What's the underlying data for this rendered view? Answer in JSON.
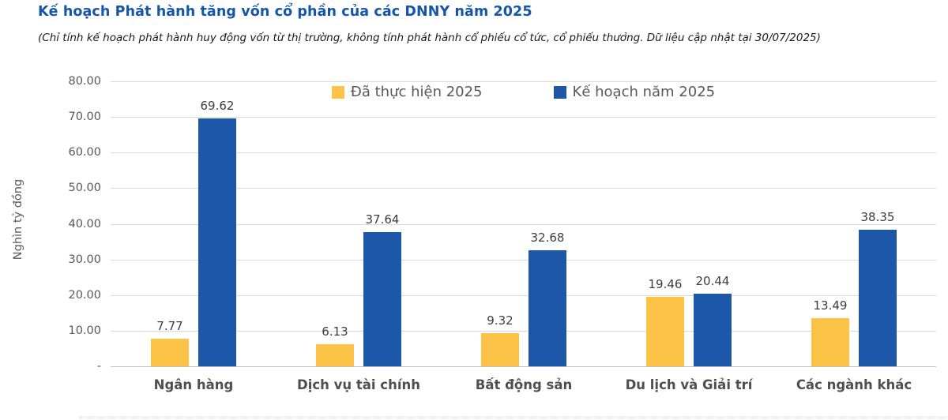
{
  "header": {
    "title": "Kế hoạch Phát hành tăng vốn cổ phần của các DNNY năm 2025",
    "subtitle": "(Chỉ tính kế hoạch phát hành huy động vốn từ thị trường, không tính phát hành cổ phiếu cổ tức, cổ phiếu thưởng. Dữ liệu cập nhật tại 30/07/2025)"
  },
  "chart_data": {
    "type": "bar",
    "title": "Kế hoạch Phát hành tăng vốn cổ phần của các DNNY năm 2025",
    "ylabel": "Nghìn tỷ đồng",
    "xlabel": "",
    "ylim": [
      0,
      80
    ],
    "ytick_step": 10,
    "ytick_labels": [
      "80.00",
      "70.00",
      "60.00",
      "50.00",
      "40.00",
      "30.00",
      "20.00",
      "10.00",
      "-"
    ],
    "grid": true,
    "legend_position": "top-center",
    "categories": [
      "Ngân hàng",
      "Dịch vụ tài chính",
      "Bất động sản",
      "Du lịch và Giải trí",
      "Các ngành khác"
    ],
    "series": [
      {
        "name": "Đã thực hiện 2025",
        "color": "#FCC346",
        "values": [
          7.77,
          6.13,
          9.32,
          19.46,
          13.49
        ]
      },
      {
        "name": "Kế hoạch năm 2025",
        "color": "#1D57A9",
        "values": [
          69.62,
          37.64,
          32.68,
          20.44,
          38.35
        ]
      }
    ],
    "value_label_decimals": 2
  },
  "colors": {
    "title": "#1656A6",
    "series_done": "#FCC346",
    "series_plan": "#1D57A9",
    "gridline": "#D9D9D9",
    "axis_text": "#595959",
    "data_label": "#3d3d3d"
  }
}
